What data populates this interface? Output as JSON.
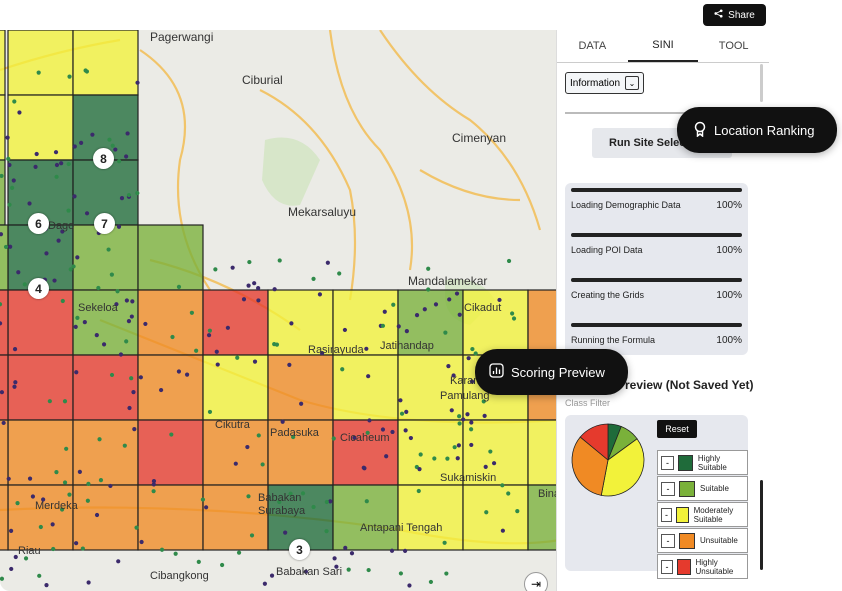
{
  "share": {
    "label": "Share",
    "icon": "share-icon"
  },
  "map": {
    "places": [
      "Pagerwangi",
      "Ciburial",
      "Cimenyan",
      "Mekarsaluyu",
      "Mandalamekar",
      "Sekeloa",
      "Cikadut",
      "Rasirayuda",
      "Jatihandap",
      "Pamulang",
      "Cikutra",
      "Padasuka",
      "Cicaheum",
      "Babakan Surabaya",
      "Sukamiskin",
      "Antapani Tengah",
      "Merdeka",
      "Cibangkong",
      "Babakan Sari",
      "Karang",
      "Bina",
      "Dago",
      "Riau"
    ],
    "markers": [
      "8",
      "6",
      "7",
      "4",
      "3"
    ],
    "expand_icon": "expand-arrow-icon"
  },
  "panel": {
    "tabs": [
      "DATA",
      "SINI",
      "TOOL"
    ],
    "active_tab": "SINI",
    "info_button": "Information",
    "run_button": "Run Site Selection",
    "progress": [
      {
        "label": "Loading Demographic Data",
        "pct": "100%"
      },
      {
        "label": "Loading POI Data",
        "pct": "100%"
      },
      {
        "label": "Creating the Grids",
        "pct": "100%"
      },
      {
        "label": "Running the Formula",
        "pct": "100%"
      }
    ],
    "preview_title": "Preview (Not Saved Yet)",
    "class_filter": "Class Filter",
    "reset": "Reset",
    "legend": [
      {
        "label": "Highly Suitable",
        "color": "#1f6b3a"
      },
      {
        "label": "Suitable",
        "color": "#7ab13a"
      },
      {
        "label": "Moderately Suitable",
        "color": "#f2f23a"
      },
      {
        "label": "Unsuitable",
        "color": "#f08a24"
      },
      {
        "label": "Highly Unsuitable",
        "color": "#e53a2d"
      }
    ],
    "pie_shares": [
      0.06,
      0.09,
      0.38,
      0.33,
      0.14
    ]
  },
  "tooltips": {
    "location_ranking": "Location Ranking",
    "scoring_preview": "Scoring Preview"
  },
  "colors": {
    "highly_suitable": "#1f6b3a",
    "suitable": "#7ab13a",
    "moderate": "#f2f23a",
    "unsuitable": "#f08a24",
    "highly_unsuitable": "#e53a2d"
  }
}
